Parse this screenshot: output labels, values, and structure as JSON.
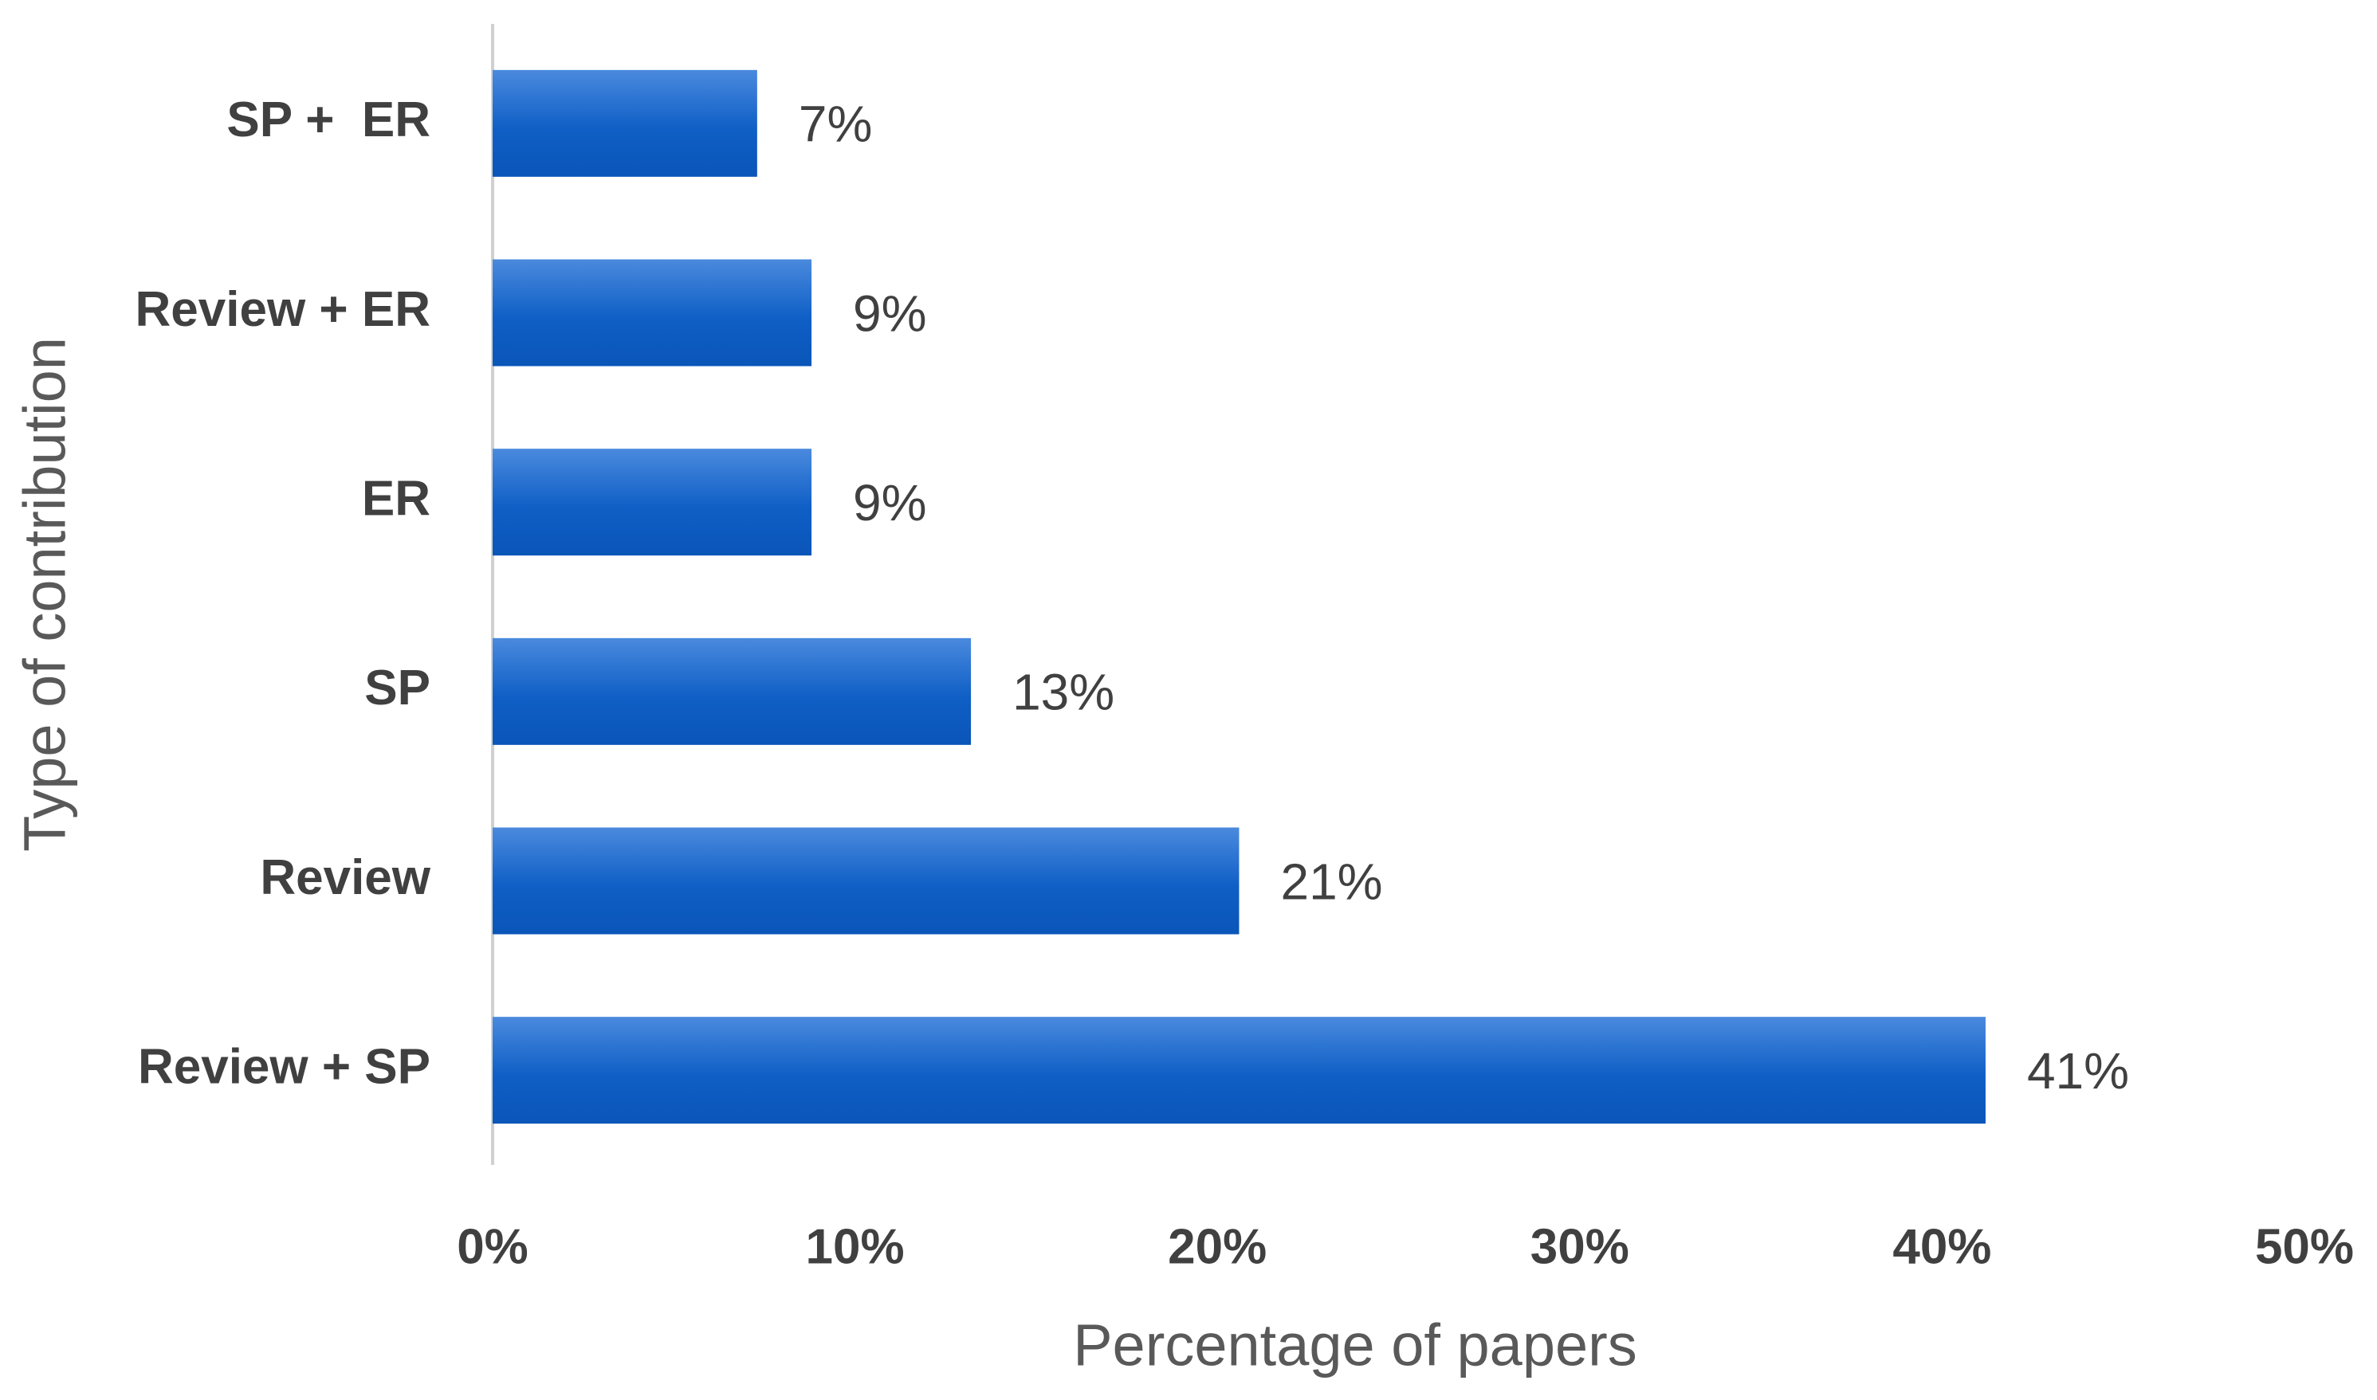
{
  "chart_data": {
    "type": "hbar",
    "categories": [
      "SP +  ER",
      "Review + ER",
      "ER",
      "SP",
      "Review",
      "Review + SP"
    ],
    "values": [
      7.3,
      8.8,
      8.8,
      13.2,
      20.6,
      41.2
    ],
    "value_labels": [
      "7%",
      "9%",
      "9%",
      "13%",
      "21%",
      "41%"
    ],
    "color": "#0f5fc6",
    "xlim": [
      0,
      50
    ],
    "xticks": [
      {
        "value": 0,
        "label": "0%"
      },
      {
        "value": 10,
        "label": "10%"
      },
      {
        "value": 20,
        "label": "20%"
      },
      {
        "value": 30,
        "label": "30%"
      },
      {
        "value": 40,
        "label": "40%"
      },
      {
        "value": 50,
        "label": "50%"
      }
    ],
    "x_label": "Percentage of papers",
    "y_label": "Type of contribution",
    "grid": false
  }
}
